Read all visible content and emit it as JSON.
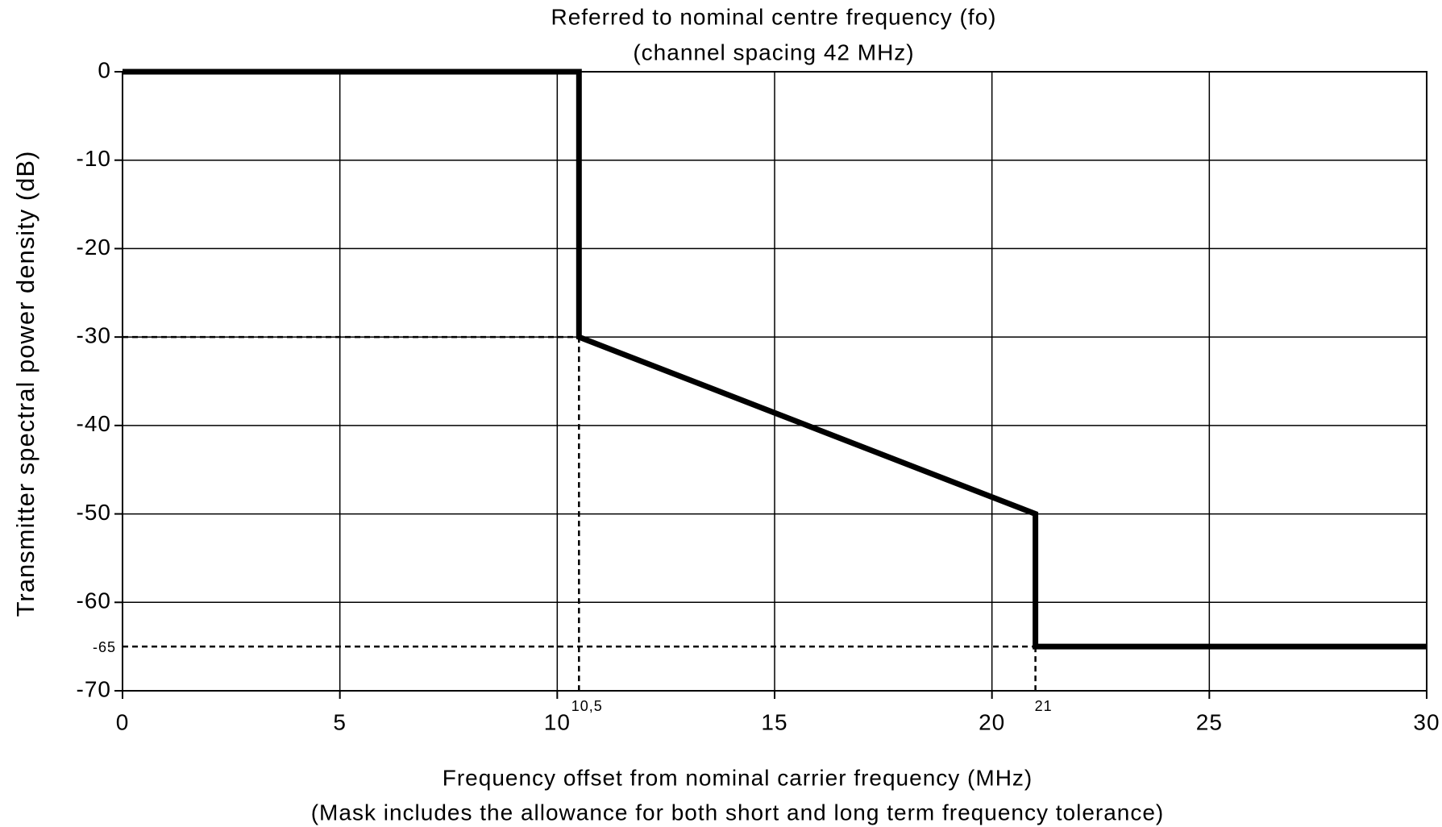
{
  "chart_data": {
    "type": "line",
    "title": "Referred to nominal centre frequency (fo)",
    "subtitle": "(channel spacing 42 MHz)",
    "xlabel": [
      "Frequency offset from nominal carrier frequency (MHz)",
      "(Mask includes the allowance for both short and long term frequency tolerance)"
    ],
    "ylabel": "Transmitter spectral power density (dB)",
    "xlim": [
      0,
      30
    ],
    "ylim": [
      -70,
      0
    ],
    "xticks": [
      0,
      5,
      10,
      15,
      20,
      25,
      30
    ],
    "yticks": [
      0,
      -10,
      -20,
      -30,
      -40,
      -50,
      -60,
      -70
    ],
    "grid": true,
    "series": [
      {
        "color": "#000000",
        "x": [
          0,
          10.5,
          10.5,
          21,
          21,
          30
        ],
        "values": [
          0,
          0,
          -30,
          -50,
          -65,
          -65
        ]
      }
    ],
    "reference_lines": [
      {
        "x": 10.5,
        "label": "10,5",
        "ymax": -30
      },
      {
        "x": 21,
        "label": "21",
        "ymax": -65
      },
      {
        "y": -30,
        "xmax": 10.5
      },
      {
        "y": -65,
        "label": "-65",
        "xmax": 21
      }
    ]
  }
}
